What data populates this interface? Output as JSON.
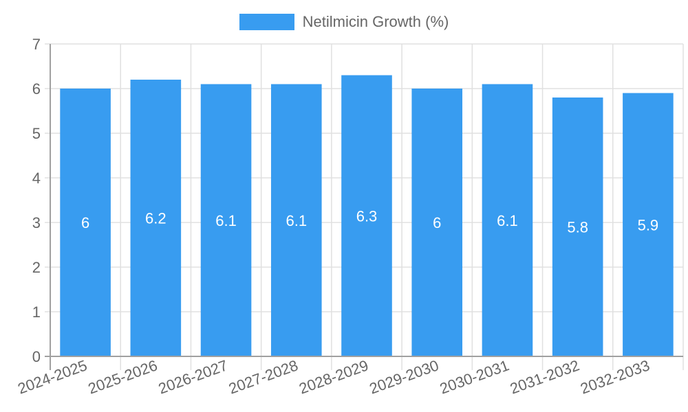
{
  "chart_data": {
    "type": "bar",
    "title": "",
    "xlabel": "",
    "ylabel": "",
    "ylim": [
      0,
      7
    ],
    "yticks": [
      0,
      1,
      2,
      3,
      4,
      5,
      6,
      7
    ],
    "grid": true,
    "legend_position": "top",
    "categories": [
      "2024-2025",
      "2025-2026",
      "2026-2027",
      "2027-2028",
      "2028-2029",
      "2029-2030",
      "2030-2031",
      "2031-2032",
      "2032-2033"
    ],
    "series": [
      {
        "name": "Netilmicin Growth (%)",
        "color": "#389cf0",
        "values": [
          6,
          6.2,
          6.1,
          6.1,
          6.3,
          6,
          6.1,
          5.8,
          5.9
        ],
        "data_labels": [
          "6",
          "6.2",
          "6.1",
          "6.1",
          "6.3",
          "6",
          "6.1",
          "5.8",
          "5.9"
        ]
      }
    ]
  },
  "legend": {
    "label": "Netilmicin Growth (%)"
  },
  "colors": {
    "bar": "#389cf0",
    "grid": "#e0e0e0",
    "axis": "#a0a0a0",
    "tick_text": "#666666",
    "data_label": "#ffffff"
  }
}
